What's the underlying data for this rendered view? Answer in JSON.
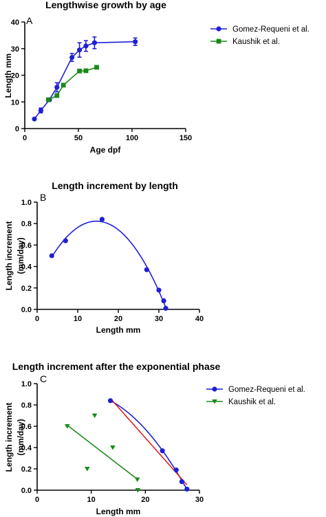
{
  "chart_data": [
    {
      "panel_label": "A",
      "type": "line",
      "title": "Lengthwise growth by age",
      "xlabel": "Age dpf",
      "ylabel": "Length mm",
      "xlim": [
        0,
        150
      ],
      "ylim": [
        0,
        40
      ],
      "xticks": [
        "0",
        "50",
        "100",
        "150"
      ],
      "yticks": [
        "0",
        "10",
        "20",
        "30",
        "40"
      ],
      "legend_position": "right",
      "series": [
        {
          "name": "Gomez-Requeni et al.",
          "color": "#1f1fd6",
          "marker": "circle",
          "x": [
            9,
            15,
            23,
            30,
            44,
            51,
            57,
            65,
            103
          ],
          "y": [
            3.6,
            6.8,
            10.8,
            15.5,
            26.7,
            29.5,
            31.0,
            32.2,
            32.6
          ],
          "err": [
            0.3,
            0.9,
            0.5,
            1.7,
            1.5,
            2.7,
            2.0,
            2.2,
            1.4
          ]
        },
        {
          "name": "Kaushik et al.",
          "color": "#1a8a1a",
          "marker": "square",
          "x": [
            22,
            30,
            36,
            51,
            57,
            67
          ],
          "y": [
            10.8,
            12.4,
            16.3,
            21.6,
            21.7,
            23.0
          ]
        }
      ]
    },
    {
      "panel_label": "B",
      "type": "scatter",
      "title": "Length increment by length",
      "xlabel": "Length mm",
      "ylabel": "Length increment (mm/day)",
      "ylabel_lines": [
        "Length increment",
        "(mm/day)"
      ],
      "xlim": [
        0,
        40
      ],
      "ylim": [
        0,
        1.0
      ],
      "xticks": [
        "0",
        "10",
        "20",
        "30",
        "40"
      ],
      "yticks": [
        "0.0",
        "0.2",
        "0.4",
        "0.6",
        "0.8",
        "1.0"
      ],
      "series": [
        {
          "color": "#1f1fd6",
          "marker": "circle",
          "x": [
            3.6,
            7.0,
            16.0,
            27.0,
            30.0,
            31.2,
            31.7
          ],
          "y": [
            0.5,
            0.64,
            0.84,
            0.37,
            0.18,
            0.08,
            0.01
          ],
          "fit": "quadratic"
        }
      ]
    },
    {
      "panel_label": "C",
      "type": "scatter",
      "title": "Length increment after the exponential phase",
      "xlabel": "Length mm",
      "ylabel": "Length increment (mm/day)",
      "ylabel_lines": [
        "Length increment",
        "(mm/day)"
      ],
      "xlim": [
        0,
        35
      ],
      "ylim": [
        0,
        1.0
      ],
      "xticks": [
        "0",
        "10",
        "20",
        "30"
      ],
      "yticks": [
        "0.0",
        "0.2",
        "0.4",
        "0.6",
        "0.8",
        "1.0"
      ],
      "legend_position": "top-right",
      "series": [
        {
          "name": "Gomez-Requeni et al.",
          "color": "#1f1fd6",
          "marker": "circle",
          "x": [
            15.8,
            27.0,
            30.0,
            31.2,
            32.3
          ],
          "y": [
            0.84,
            0.37,
            0.19,
            0.08,
            0.01
          ]
        },
        {
          "name": "Kaushik et al.",
          "color": "#1a8a1a",
          "marker": "triangle-down",
          "x": [
            6.5,
            10.8,
            12.4,
            16.3,
            21.6,
            21.7
          ],
          "y": [
            0.6,
            0.2,
            0.7,
            0.4,
            0.1,
            0.0
          ]
        }
      ],
      "fit_lines": [
        {
          "series": "Gomez-Requeni et al.",
          "color": "#1f1fd6",
          "fit": "quadratic"
        },
        {
          "series": "Gomez-Requeni et al.",
          "color": "#e02020",
          "fit": "linear"
        },
        {
          "series": "Kaushik et al.",
          "color": "#1a8a1a",
          "fit": "linear",
          "x": [
            6.5,
            21.7
          ],
          "y": [
            0.61,
            0.1
          ]
        }
      ]
    }
  ]
}
